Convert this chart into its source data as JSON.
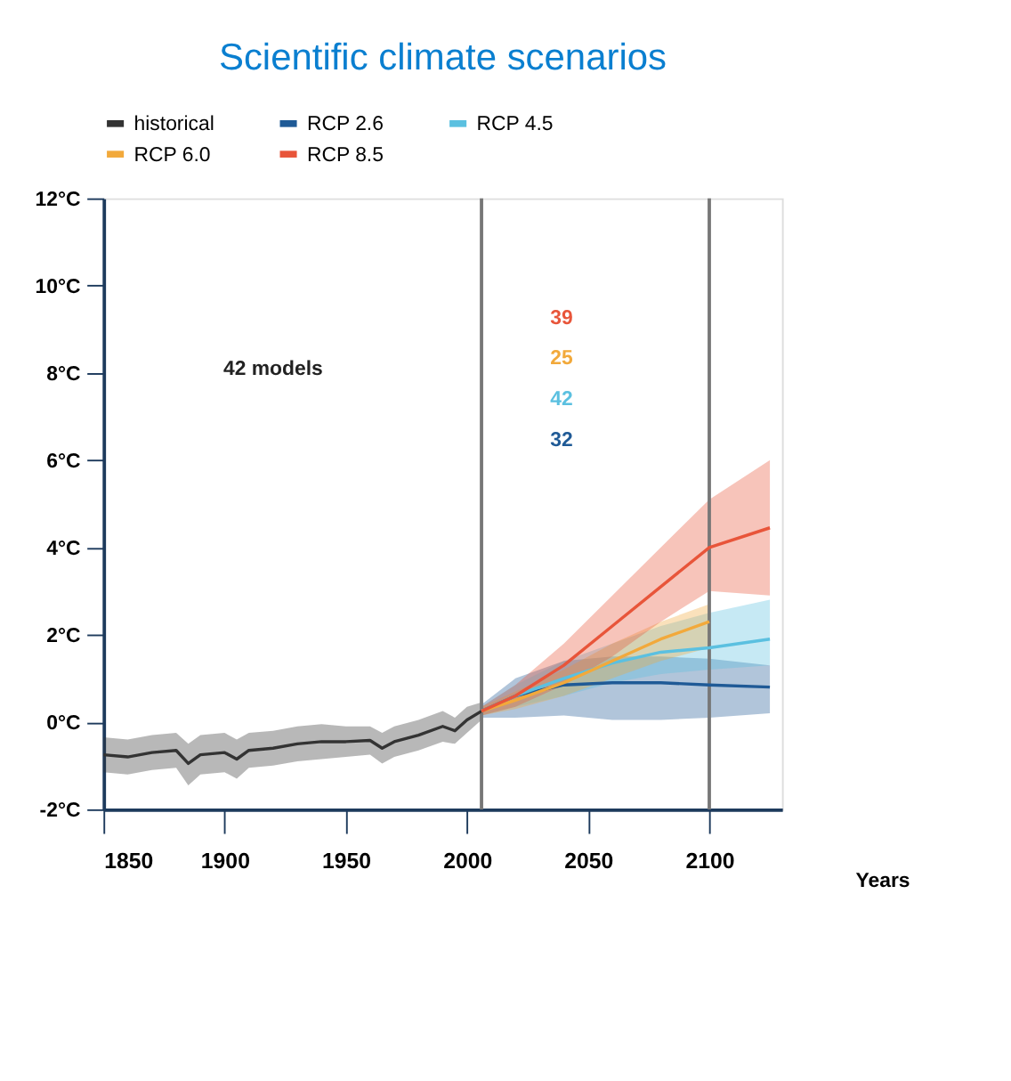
{
  "chart_data": {
    "type": "line",
    "title": "Scientific climate scenarios",
    "xlabel": "Years",
    "xlim": [
      1850,
      2130
    ],
    "xticks": [
      1850,
      1900,
      1950,
      2000,
      2050,
      2100
    ],
    "ylim": [
      -2,
      12
    ],
    "yticks": [
      {
        "value": -2,
        "label": "-2°C"
      },
      {
        "value": 0,
        "label": "0°C"
      },
      {
        "value": 2,
        "label": "2°C"
      },
      {
        "value": 4,
        "label": "4°C"
      },
      {
        "value": 6,
        "label": "6°C"
      },
      {
        "value": 8,
        "label": "8°C"
      },
      {
        "value": 10,
        "label": "10°C"
      },
      {
        "value": 12,
        "label": "12°C"
      }
    ],
    "grid": false,
    "legend": "top",
    "marker": "none",
    "line_style": "solid",
    "series": [
      {
        "name": "historical",
        "color": "#333333",
        "x": [
          1850,
          1860,
          1870,
          1880,
          1885,
          1890,
          1900,
          1905,
          1910,
          1920,
          1930,
          1940,
          1950,
          1960,
          1965,
          1970,
          1980,
          1990,
          1995,
          2000,
          2006
        ],
        "values": [
          -0.75,
          -0.8,
          -0.7,
          -0.65,
          -0.95,
          -0.75,
          -0.7,
          -0.85,
          -0.65,
          -0.6,
          -0.5,
          -0.45,
          -0.45,
          -0.42,
          -0.6,
          -0.45,
          -0.3,
          -0.1,
          -0.2,
          0.05,
          0.25
        ],
        "lower": [
          -1.15,
          -1.2,
          -1.1,
          -1.05,
          -1.45,
          -1.2,
          -1.15,
          -1.3,
          -1.05,
          -1.0,
          -0.9,
          -0.85,
          -0.8,
          -0.75,
          -0.95,
          -0.8,
          -0.65,
          -0.45,
          -0.5,
          -0.25,
          0.05
        ],
        "upper": [
          -0.35,
          -0.4,
          -0.3,
          -0.25,
          -0.5,
          -0.3,
          -0.25,
          -0.4,
          -0.25,
          -0.2,
          -0.1,
          -0.05,
          -0.1,
          -0.1,
          -0.25,
          -0.1,
          0.05,
          0.25,
          0.1,
          0.35,
          0.45
        ]
      },
      {
        "name": "RCP 2.6",
        "color": "#1f5a96",
        "x": [
          2006,
          2020,
          2040,
          2060,
          2080,
          2100,
          2125
        ],
        "values": [
          0.25,
          0.6,
          0.85,
          0.9,
          0.9,
          0.85,
          0.8
        ],
        "lower": [
          0.1,
          0.1,
          0.15,
          0.05,
          0.05,
          0.1,
          0.2
        ],
        "upper": [
          0.4,
          1.0,
          1.4,
          1.5,
          1.5,
          1.45,
          1.3
        ]
      },
      {
        "name": "RCP 4.5",
        "color": "#5bc0e0",
        "x": [
          2006,
          2020,
          2040,
          2060,
          2080,
          2100,
          2125
        ],
        "values": [
          0.25,
          0.6,
          1.0,
          1.35,
          1.6,
          1.7,
          1.9
        ],
        "lower": [
          0.15,
          0.35,
          0.6,
          0.9,
          1.1,
          1.2,
          1.3
        ],
        "upper": [
          0.35,
          0.85,
          1.4,
          1.8,
          2.2,
          2.5,
          2.8
        ]
      },
      {
        "name": "RCP 6.0",
        "color": "#f2a93b",
        "x": [
          2006,
          2020,
          2040,
          2060,
          2080,
          2100
        ],
        "values": [
          0.25,
          0.5,
          0.9,
          1.4,
          1.9,
          2.3
        ],
        "lower": [
          0.15,
          0.3,
          0.6,
          1.0,
          1.4,
          1.7
        ],
        "upper": [
          0.35,
          0.7,
          1.2,
          1.8,
          2.3,
          2.7
        ]
      },
      {
        "name": "RCP 8.5",
        "color": "#e8553a",
        "x": [
          2006,
          2020,
          2040,
          2060,
          2080,
          2100,
          2125
        ],
        "values": [
          0.25,
          0.6,
          1.3,
          2.2,
          3.1,
          4.0,
          4.45
        ],
        "lower": [
          0.15,
          0.35,
          0.85,
          1.5,
          2.3,
          3.0,
          2.9
        ],
        "upper": [
          0.35,
          0.85,
          1.8,
          2.9,
          4.0,
          5.1,
          6.0
        ]
      }
    ],
    "ref_lines": [
      {
        "axis": "x",
        "value": 2006,
        "color": "#777777"
      },
      {
        "axis": "x",
        "value": 2100,
        "color": "#777777"
      }
    ],
    "annotations": [
      "42 models",
      "39",
      "25",
      "42",
      "32"
    ]
  }
}
